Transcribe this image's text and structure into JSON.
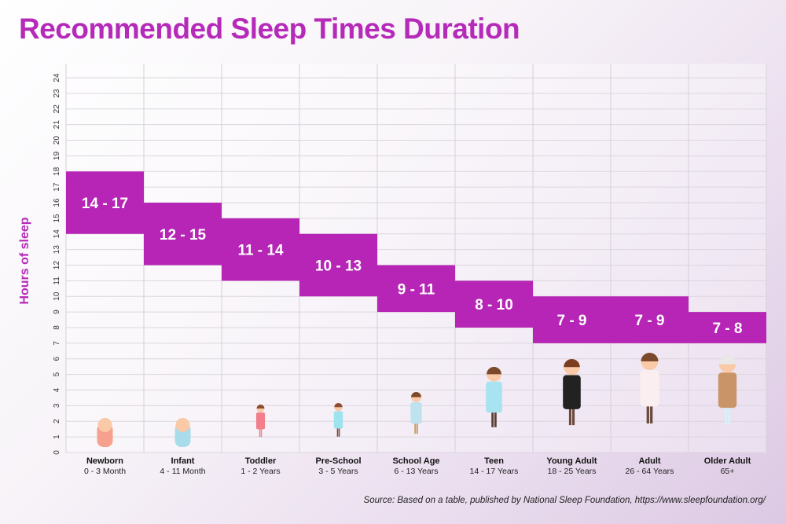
{
  "chart_data": {
    "type": "range-bar",
    "title": "Recommended Sleep Times Duration",
    "ylabel": "Hours of sleep",
    "ylim": [
      0,
      24
    ],
    "yticks": [
      0,
      1,
      2,
      3,
      4,
      5,
      6,
      7,
      8,
      9,
      10,
      11,
      12,
      13,
      14,
      15,
      16,
      17,
      18,
      19,
      20,
      21,
      22,
      23,
      24
    ],
    "grid": true,
    "categories": [
      {
        "name": "Newborn",
        "age": "0 - 3 Month",
        "low": 14,
        "high": 17,
        "label": "14 - 17"
      },
      {
        "name": "Infant",
        "age": "4 - 11 Month",
        "low": 12,
        "high": 15,
        "label": "12 - 15"
      },
      {
        "name": "Toddler",
        "age": "1 - 2 Years",
        "low": 11,
        "high": 14,
        "label": "11 - 14"
      },
      {
        "name": "Pre-School",
        "age": "3 - 5 Years",
        "low": 10,
        "high": 13,
        "label": "10 - 13"
      },
      {
        "name": "School Age",
        "age": "6 - 13 Years",
        "low": 9,
        "high": 11,
        "label": "9 - 11"
      },
      {
        "name": "Teen",
        "age": "14 - 17 Years",
        "low": 8,
        "high": 10,
        "label": "8 - 10"
      },
      {
        "name": "Young Adult",
        "age": "18 - 25 Years",
        "low": 7,
        "high": 9,
        "label": "7 - 9"
      },
      {
        "name": "Adult",
        "age": "26 - 64 Years",
        "low": 7,
        "high": 9,
        "label": "7 - 9"
      },
      {
        "name": "Older Adult",
        "age": "65+",
        "low": 7,
        "high": 8,
        "label": "7 - 8"
      }
    ],
    "bar_color": "#b625b6",
    "title_color": "#b52ab8"
  },
  "source": "Source: Based on a table, published by National Sleep Foundation, https://www.sleepfoundation.org/"
}
